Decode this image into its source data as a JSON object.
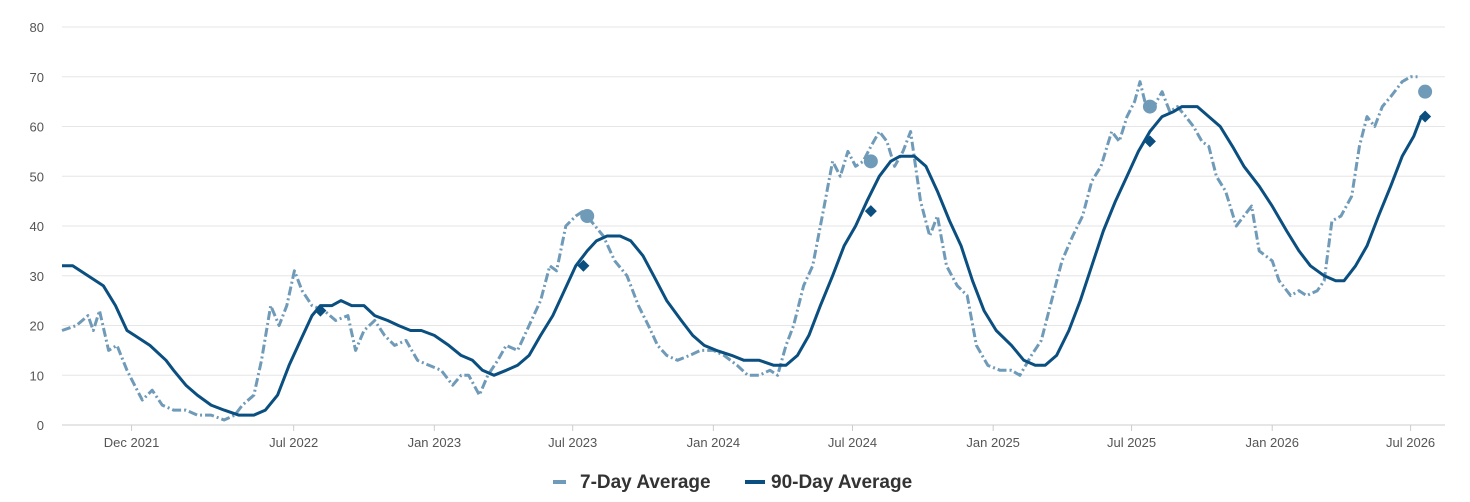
{
  "chart_data": {
    "type": "line",
    "title": "",
    "xlabel": "",
    "ylabel": "",
    "ylim": [
      0,
      80
    ],
    "yticks": [
      "0",
      "10",
      "20",
      "30",
      "40",
      "50",
      "60",
      "70",
      "80"
    ],
    "xlim": [
      "2021-09-01",
      "2026-08-15"
    ],
    "xticks": [
      {
        "label": "Dec 2021",
        "date": "2021-12-01"
      },
      {
        "label": "Jul 2022",
        "date": "2022-07-01"
      },
      {
        "label": "Jan 2023",
        "date": "2023-01-01"
      },
      {
        "label": "Jul 2023",
        "date": "2023-07-01"
      },
      {
        "label": "Jan 2024",
        "date": "2024-01-01"
      },
      {
        "label": "Jul 2024",
        "date": "2024-07-01"
      },
      {
        "label": "Jan 2025",
        "date": "2025-01-01"
      },
      {
        "label": "Jul 2025",
        "date": "2025-07-01"
      },
      {
        "label": "Jan 2026",
        "date": "2026-01-01"
      },
      {
        "label": "Jul 2026",
        "date": "2026-07-01"
      }
    ],
    "grid": true,
    "legend_position": "bottom-center",
    "series": [
      {
        "name": "7-Day Average",
        "color": "#6f9ab8",
        "style": "dashed",
        "points": [
          [
            "2021-09-01",
            19
          ],
          [
            "2021-09-20",
            20
          ],
          [
            "2021-10-05",
            22
          ],
          [
            "2021-10-12",
            19
          ],
          [
            "2021-10-20",
            23
          ],
          [
            "2021-11-01",
            15
          ],
          [
            "2021-11-12",
            16
          ],
          [
            "2021-11-25",
            11
          ],
          [
            "2021-12-05",
            8
          ],
          [
            "2021-12-15",
            5
          ],
          [
            "2021-12-28",
            7
          ],
          [
            "2022-01-10",
            4
          ],
          [
            "2022-01-25",
            3
          ],
          [
            "2022-02-10",
            3
          ],
          [
            "2022-02-25",
            2
          ],
          [
            "2022-03-15",
            2
          ],
          [
            "2022-04-01",
            1
          ],
          [
            "2022-04-15",
            2
          ],
          [
            "2022-04-25",
            4
          ],
          [
            "2022-05-10",
            6
          ],
          [
            "2022-05-20",
            13
          ],
          [
            "2022-06-01",
            24
          ],
          [
            "2022-06-12",
            20
          ],
          [
            "2022-06-22",
            24
          ],
          [
            "2022-07-02",
            31
          ],
          [
            "2022-07-12",
            27
          ],
          [
            "2022-07-25",
            24
          ],
          [
            "2022-08-10",
            23
          ],
          [
            "2022-08-25",
            21
          ],
          [
            "2022-09-10",
            22
          ],
          [
            "2022-09-20",
            15
          ],
          [
            "2022-10-01",
            19
          ],
          [
            "2022-10-15",
            21
          ],
          [
            "2022-10-28",
            18
          ],
          [
            "2022-11-10",
            16
          ],
          [
            "2022-11-25",
            17
          ],
          [
            "2022-12-10",
            13
          ],
          [
            "2022-12-25",
            12
          ],
          [
            "2023-01-10",
            11
          ],
          [
            "2023-01-25",
            8
          ],
          [
            "2023-02-05",
            10
          ],
          [
            "2023-02-15",
            10
          ],
          [
            "2023-03-01",
            6
          ],
          [
            "2023-03-12",
            10
          ],
          [
            "2023-03-25",
            13
          ],
          [
            "2023-04-05",
            16
          ],
          [
            "2023-04-20",
            15
          ],
          [
            "2023-05-05",
            20
          ],
          [
            "2023-05-20",
            25
          ],
          [
            "2023-06-01",
            32
          ],
          [
            "2023-06-10",
            31
          ],
          [
            "2023-06-22",
            40
          ],
          [
            "2023-07-05",
            42
          ],
          [
            "2023-07-15",
            43
          ],
          [
            "2023-07-25",
            41
          ],
          [
            "2023-08-10",
            38
          ],
          [
            "2023-08-25",
            33
          ],
          [
            "2023-09-10",
            30
          ],
          [
            "2023-09-25",
            24
          ],
          [
            "2023-10-08",
            20
          ],
          [
            "2023-10-20",
            16
          ],
          [
            "2023-11-01",
            14
          ],
          [
            "2023-11-15",
            13
          ],
          [
            "2023-12-01",
            14
          ],
          [
            "2023-12-15",
            15
          ],
          [
            "2024-01-01",
            15
          ],
          [
            "2024-01-15",
            14
          ],
          [
            "2024-02-01",
            12
          ],
          [
            "2024-02-15",
            10
          ],
          [
            "2024-03-01",
            10
          ],
          [
            "2024-03-15",
            11
          ],
          [
            "2024-03-25",
            10
          ],
          [
            "2024-04-05",
            16
          ],
          [
            "2024-04-15",
            20
          ],
          [
            "2024-04-28",
            28
          ],
          [
            "2024-05-10",
            32
          ],
          [
            "2024-05-25",
            44
          ],
          [
            "2024-06-05",
            53
          ],
          [
            "2024-06-15",
            50
          ],
          [
            "2024-06-25",
            55
          ],
          [
            "2024-07-05",
            52
          ],
          [
            "2024-07-15",
            53
          ],
          [
            "2024-07-25",
            56
          ],
          [
            "2024-08-05",
            59
          ],
          [
            "2024-08-15",
            57
          ],
          [
            "2024-08-25",
            52
          ],
          [
            "2024-09-05",
            55
          ],
          [
            "2024-09-15",
            59
          ],
          [
            "2024-09-28",
            45
          ],
          [
            "2024-10-10",
            38
          ],
          [
            "2024-10-20",
            42
          ],
          [
            "2024-11-01",
            32
          ],
          [
            "2024-11-15",
            28
          ],
          [
            "2024-11-28",
            26
          ],
          [
            "2024-12-10",
            16
          ],
          [
            "2024-12-25",
            12
          ],
          [
            "2025-01-10",
            11
          ],
          [
            "2025-01-25",
            11
          ],
          [
            "2025-02-05",
            10
          ],
          [
            "2025-02-20",
            14
          ],
          [
            "2025-03-05",
            17
          ],
          [
            "2025-03-15",
            23
          ],
          [
            "2025-04-01",
            33
          ],
          [
            "2025-04-15",
            38
          ],
          [
            "2025-04-28",
            42
          ],
          [
            "2025-05-10",
            49
          ],
          [
            "2025-05-22",
            52
          ],
          [
            "2025-06-05",
            59
          ],
          [
            "2025-06-15",
            57
          ],
          [
            "2025-06-25",
            62
          ],
          [
            "2025-07-05",
            65
          ],
          [
            "2025-07-12",
            69
          ],
          [
            "2025-07-20",
            64
          ],
          [
            "2025-07-30",
            64
          ],
          [
            "2025-08-10",
            67
          ],
          [
            "2025-08-20",
            63
          ],
          [
            "2025-08-30",
            64
          ],
          [
            "2025-09-10",
            62
          ],
          [
            "2025-09-20",
            60
          ],
          [
            "2025-10-01",
            57
          ],
          [
            "2025-10-10",
            56
          ],
          [
            "2025-10-20",
            50
          ],
          [
            "2025-11-01",
            47
          ],
          [
            "2025-11-15",
            40
          ],
          [
            "2025-11-25",
            42
          ],
          [
            "2025-12-05",
            44
          ],
          [
            "2025-12-15",
            35
          ],
          [
            "2026-01-01",
            33
          ],
          [
            "2026-01-10",
            29
          ],
          [
            "2026-01-25",
            26
          ],
          [
            "2026-02-05",
            27
          ],
          [
            "2026-02-15",
            26
          ],
          [
            "2026-03-01",
            27
          ],
          [
            "2026-03-10",
            29
          ],
          [
            "2026-03-20",
            41
          ],
          [
            "2026-04-01",
            42
          ],
          [
            "2026-04-15",
            46
          ],
          [
            "2026-04-25",
            56
          ],
          [
            "2026-05-05",
            62
          ],
          [
            "2026-05-15",
            60
          ],
          [
            "2026-05-25",
            64
          ],
          [
            "2026-06-05",
            66
          ],
          [
            "2026-06-20",
            69
          ],
          [
            "2026-07-01",
            70
          ],
          [
            "2026-07-10",
            70
          ]
        ]
      },
      {
        "name": "90-Day Average",
        "color": "#0a4f80",
        "style": "solid",
        "points": [
          [
            "2021-09-01",
            32
          ],
          [
            "2021-09-15",
            32
          ],
          [
            "2021-10-05",
            30
          ],
          [
            "2021-10-25",
            28
          ],
          [
            "2021-11-10",
            24
          ],
          [
            "2021-11-25",
            19
          ],
          [
            "2021-12-05",
            18
          ],
          [
            "2021-12-25",
            16
          ],
          [
            "2022-01-15",
            13
          ],
          [
            "2022-01-25",
            11
          ],
          [
            "2022-02-10",
            8
          ],
          [
            "2022-02-25",
            6
          ],
          [
            "2022-03-15",
            4
          ],
          [
            "2022-04-01",
            3
          ],
          [
            "2022-04-20",
            2
          ],
          [
            "2022-05-10",
            2
          ],
          [
            "2022-05-25",
            3
          ],
          [
            "2022-06-10",
            6
          ],
          [
            "2022-06-25",
            12
          ],
          [
            "2022-07-10",
            17
          ],
          [
            "2022-07-25",
            22
          ],
          [
            "2022-08-05",
            24
          ],
          [
            "2022-08-20",
            24
          ],
          [
            "2022-09-01",
            25
          ],
          [
            "2022-09-15",
            24
          ],
          [
            "2022-10-01",
            24
          ],
          [
            "2022-10-15",
            22
          ],
          [
            "2022-11-01",
            21
          ],
          [
            "2022-11-15",
            20
          ],
          [
            "2022-12-01",
            19
          ],
          [
            "2022-12-15",
            19
          ],
          [
            "2023-01-01",
            18
          ],
          [
            "2023-01-20",
            16
          ],
          [
            "2023-02-05",
            14
          ],
          [
            "2023-02-20",
            13
          ],
          [
            "2023-03-05",
            11
          ],
          [
            "2023-03-20",
            10
          ],
          [
            "2023-04-05",
            11
          ],
          [
            "2023-04-20",
            12
          ],
          [
            "2023-05-05",
            14
          ],
          [
            "2023-05-20",
            18
          ],
          [
            "2023-06-05",
            22
          ],
          [
            "2023-06-20",
            27
          ],
          [
            "2023-07-05",
            32
          ],
          [
            "2023-07-20",
            35
          ],
          [
            "2023-08-01",
            37
          ],
          [
            "2023-08-15",
            38
          ],
          [
            "2023-09-01",
            38
          ],
          [
            "2023-09-15",
            37
          ],
          [
            "2023-10-01",
            34
          ],
          [
            "2023-10-15",
            30
          ],
          [
            "2023-11-01",
            25
          ],
          [
            "2023-11-20",
            21
          ],
          [
            "2023-12-05",
            18
          ],
          [
            "2023-12-20",
            16
          ],
          [
            "2024-01-05",
            15
          ],
          [
            "2024-01-25",
            14
          ],
          [
            "2024-02-10",
            13
          ],
          [
            "2024-03-01",
            13
          ],
          [
            "2024-03-20",
            12
          ],
          [
            "2024-04-05",
            12
          ],
          [
            "2024-04-20",
            14
          ],
          [
            "2024-05-05",
            18
          ],
          [
            "2024-05-20",
            24
          ],
          [
            "2024-06-05",
            30
          ],
          [
            "2024-06-20",
            36
          ],
          [
            "2024-07-05",
            40
          ],
          [
            "2024-07-20",
            45
          ],
          [
            "2024-08-05",
            50
          ],
          [
            "2024-08-20",
            53
          ],
          [
            "2024-09-01",
            54
          ],
          [
            "2024-09-20",
            54
          ],
          [
            "2024-10-05",
            52
          ],
          [
            "2024-10-20",
            47
          ],
          [
            "2024-11-05",
            41
          ],
          [
            "2024-11-20",
            36
          ],
          [
            "2024-12-05",
            29
          ],
          [
            "2024-12-20",
            23
          ],
          [
            "2025-01-05",
            19
          ],
          [
            "2025-01-25",
            16
          ],
          [
            "2025-02-10",
            13
          ],
          [
            "2025-02-25",
            12
          ],
          [
            "2025-03-10",
            12
          ],
          [
            "2025-03-25",
            14
          ],
          [
            "2025-04-10",
            19
          ],
          [
            "2025-04-25",
            25
          ],
          [
            "2025-05-10",
            32
          ],
          [
            "2025-05-25",
            39
          ],
          [
            "2025-06-10",
            45
          ],
          [
            "2025-06-25",
            50
          ],
          [
            "2025-07-10",
            55
          ],
          [
            "2025-07-25",
            59
          ],
          [
            "2025-08-10",
            62
          ],
          [
            "2025-08-25",
            63
          ],
          [
            "2025-09-05",
            64
          ],
          [
            "2025-09-25",
            64
          ],
          [
            "2025-10-10",
            62
          ],
          [
            "2025-10-25",
            60
          ],
          [
            "2025-11-10",
            56
          ],
          [
            "2025-11-25",
            52
          ],
          [
            "2025-12-15",
            48
          ],
          [
            "2026-01-01",
            44
          ],
          [
            "2026-01-20",
            39
          ],
          [
            "2026-02-05",
            35
          ],
          [
            "2026-02-20",
            32
          ],
          [
            "2026-03-10",
            30
          ],
          [
            "2026-03-25",
            29
          ],
          [
            "2026-04-05",
            29
          ],
          [
            "2026-04-20",
            32
          ],
          [
            "2026-05-05",
            36
          ],
          [
            "2026-05-20",
            42
          ],
          [
            "2026-06-05",
            48
          ],
          [
            "2026-06-20",
            54
          ],
          [
            "2026-07-05",
            58
          ],
          [
            "2026-07-15",
            62
          ]
        ]
      }
    ],
    "markers": [
      {
        "series": "7-Day Average",
        "shape": "circle",
        "points": [
          [
            "2023-07-20",
            42
          ],
          [
            "2024-07-25",
            53
          ],
          [
            "2025-07-25",
            64
          ],
          [
            "2026-07-20",
            67
          ]
        ]
      },
      {
        "series": "90-Day Average",
        "shape": "diamond",
        "points": [
          [
            "2022-08-05",
            23
          ],
          [
            "2023-07-15",
            32
          ],
          [
            "2024-07-25",
            43
          ],
          [
            "2025-07-25",
            57
          ],
          [
            "2026-07-20",
            62
          ]
        ]
      }
    ]
  },
  "legend": [
    {
      "label": "7-Day Average",
      "color": "#6f9ab8",
      "style": "dashed"
    },
    {
      "label": "90-Day Average",
      "color": "#0a4f80",
      "style": "solid"
    }
  ],
  "colors": {
    "grid": "#e6e6e6",
    "axis": "#cccccc",
    "tick_text": "#555555"
  }
}
